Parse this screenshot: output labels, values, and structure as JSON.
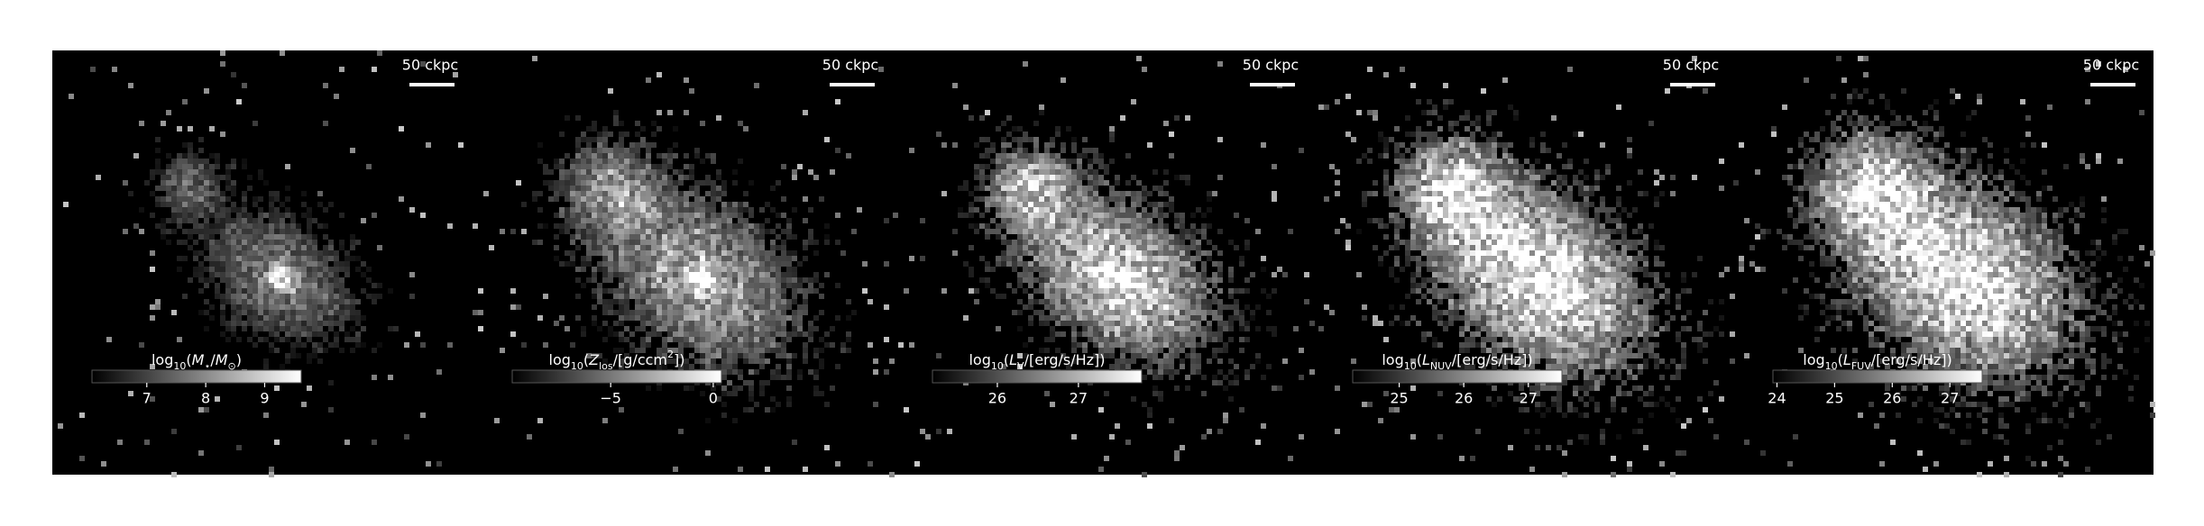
{
  "chart_data": [
    {
      "type": "image",
      "scale_bar": "50 ckpc",
      "colorbar_label": [
        {
          "text": "log",
          "style": "normal"
        },
        {
          "text": "10",
          "style": "sub"
        },
        {
          "text": "(",
          "style": "normal"
        },
        {
          "text": "M",
          "style": "italic"
        },
        {
          "text": "⋆",
          "style": "sub"
        },
        {
          "text": "/",
          "style": "normal"
        },
        {
          "text": "M",
          "style": "italic"
        },
        {
          "text": "⊙",
          "style": "sub"
        },
        {
          "text": ")",
          "style": "normal"
        }
      ],
      "xlim": [
        6.07,
        9.62
      ],
      "xticks": [
        7,
        8,
        9
      ]
    },
    {
      "type": "image",
      "scale_bar": "50 ckpc",
      "colorbar_label": [
        {
          "text": "log",
          "style": "normal"
        },
        {
          "text": "10",
          "style": "sub"
        },
        {
          "text": "(",
          "style": "normal"
        },
        {
          "text": "Z",
          "style": "italic"
        },
        {
          "text": "los",
          "style": "sub"
        },
        {
          "text": "/[g/ccm",
          "style": "normal"
        },
        {
          "text": "2",
          "style": "sup"
        },
        {
          "text": "])",
          "style": "normal"
        }
      ],
      "xlim": [
        -9.8,
        0.4
      ],
      "xticks": [
        {
          "value": -5,
          "label": "−5"
        },
        0
      ]
    },
    {
      "type": "image",
      "scale_bar": "50 ckpc",
      "colorbar_label": [
        {
          "text": "log",
          "style": "normal"
        },
        {
          "text": "10",
          "style": "sub"
        },
        {
          "text": "(",
          "style": "normal"
        },
        {
          "text": "L",
          "style": "italic"
        },
        {
          "text": "V",
          "style": "sub"
        },
        {
          "text": "/[erg/s/Hz])",
          "style": "normal"
        }
      ],
      "xlim": [
        25.2,
        27.78
      ],
      "xticks": [
        26,
        27
      ]
    },
    {
      "type": "image",
      "scale_bar": "50 ckpc",
      "colorbar_label": [
        {
          "text": "log",
          "style": "normal"
        },
        {
          "text": "10",
          "style": "sub"
        },
        {
          "text": "(",
          "style": "normal"
        },
        {
          "text": "L",
          "style": "italic"
        },
        {
          "text": "NUV",
          "style": "sub"
        },
        {
          "text": "/[erg/s/Hz])",
          "style": "normal"
        }
      ],
      "xlim": [
        24.28,
        27.52
      ],
      "xticks": [
        25,
        26,
        27
      ]
    },
    {
      "type": "image",
      "scale_bar": "50 ckpc",
      "colorbar_label": [
        {
          "text": "log",
          "style": "normal"
        },
        {
          "text": "10",
          "style": "sub"
        },
        {
          "text": "(",
          "style": "normal"
        },
        {
          "text": "L",
          "style": "italic"
        },
        {
          "text": "FUV",
          "style": "sub"
        },
        {
          "text": "/[erg/s/Hz])",
          "style": "normal"
        }
      ],
      "xlim": [
        23.93,
        27.56
      ],
      "xticks": [
        24,
        25,
        26,
        27
      ]
    }
  ]
}
